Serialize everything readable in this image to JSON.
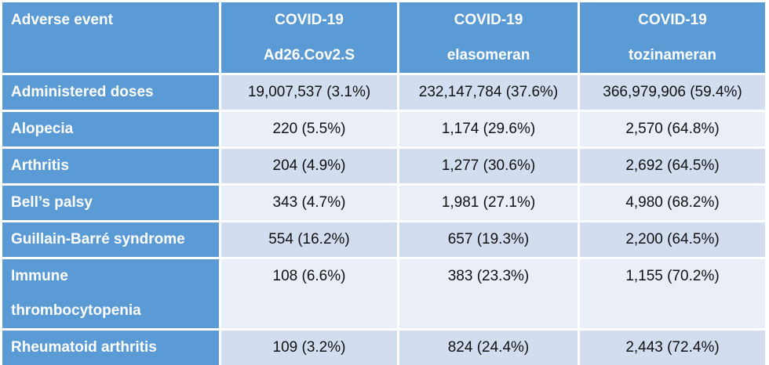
{
  "table": {
    "headers": [
      {
        "lines": [
          "Adverse event"
        ]
      },
      {
        "lines": [
          "COVID-19",
          "Ad26.Cov2.S"
        ]
      },
      {
        "lines": [
          "COVID-19",
          "elasomeran"
        ]
      },
      {
        "lines": [
          "COVID-19",
          "tozinameran"
        ]
      }
    ],
    "rows": [
      {
        "label": [
          "Administered doses"
        ],
        "values": [
          "19,007,537 (3.1%)",
          "232,147,784 (37.6%)",
          "366,979,906 (59.4%)"
        ]
      },
      {
        "label": [
          "Alopecia"
        ],
        "values": [
          "220 (5.5%)",
          "1,174 (29.6%)",
          "2,570 (64.8%)"
        ]
      },
      {
        "label": [
          "Arthritis"
        ],
        "values": [
          "204 (4.9%)",
          "1,277 (30.6%)",
          "2,692 (64.5%)"
        ]
      },
      {
        "label": [
          "Bell’s palsy"
        ],
        "values": [
          "343 (4.7%)",
          "1,981 (27.1%)",
          "4,980 (68.2%)"
        ]
      },
      {
        "label": [
          "Guillain-Barré syndrome"
        ],
        "values": [
          "554 (16.2%)",
          "657 (19.3%)",
          "2,200 (64.5%)"
        ]
      },
      {
        "label": [
          "Immune",
          "thrombocytopenia"
        ],
        "values": [
          "108 (6.6%)",
          "383 (23.3%)",
          "1,155 (70.2%)"
        ]
      },
      {
        "label": [
          "Rheumatoid arthritis"
        ],
        "values": [
          "109 (3.2%)",
          "824 (24.4%)",
          "2,443 (72.4%)"
        ]
      }
    ]
  },
  "colors": {
    "header_bg": "#5b9bd5",
    "header_text": "#ffffff",
    "row_band_dark": "#d2def0",
    "row_band_light": "#e9eef7"
  }
}
